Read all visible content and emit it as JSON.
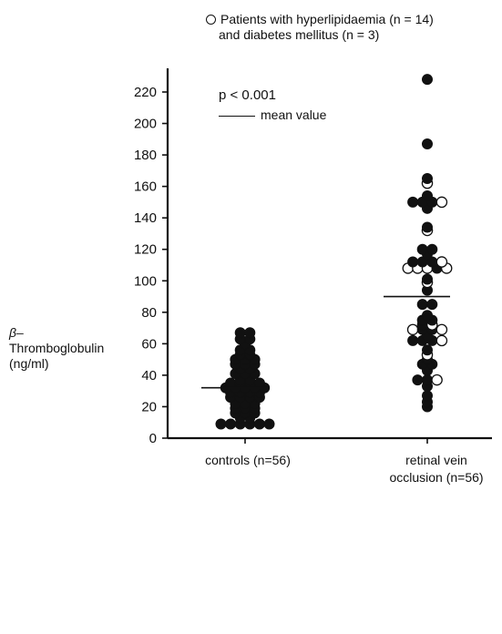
{
  "chart_data": {
    "type": "scatter",
    "legend": {
      "open_marker_line1": "Patients with hyperlipidaemia (n = 14)",
      "open_marker_line2": "and diabetes mellitus (n = 3)"
    },
    "annotation": {
      "p_value": "p < 0.001",
      "mean_label": "mean value"
    },
    "ylabel_lines": [
      "β–",
      "Thromboglobulin",
      "(ng/ml)"
    ],
    "ylim": [
      0,
      228
    ],
    "yticks": [
      0,
      20,
      40,
      60,
      80,
      100,
      120,
      140,
      160,
      180,
      200,
      220
    ],
    "categories": [
      "controls (n=56)",
      "retinal vein occlusion (n=56)"
    ],
    "category_label_lines": [
      [
        "controls (n=56)"
      ],
      [
        "retinal vein",
        "occlusion (n=56)"
      ]
    ],
    "series": [
      {
        "category": "controls (n=56)",
        "mean": 32,
        "points": [
          {
            "y": 67,
            "open": false
          },
          {
            "y": 67,
            "open": false
          },
          {
            "y": 63,
            "open": false
          },
          {
            "y": 63,
            "open": false
          },
          {
            "y": 60,
            "open": false
          },
          {
            "y": 56,
            "open": false
          },
          {
            "y": 56,
            "open": false
          },
          {
            "y": 53,
            "open": false
          },
          {
            "y": 53,
            "open": false
          },
          {
            "y": 50,
            "open": false
          },
          {
            "y": 50,
            "open": false
          },
          {
            "y": 50,
            "open": false
          },
          {
            "y": 47,
            "open": false
          },
          {
            "y": 47,
            "open": false
          },
          {
            "y": 47,
            "open": false
          },
          {
            "y": 44,
            "open": false
          },
          {
            "y": 44,
            "open": false
          },
          {
            "y": 41,
            "open": false
          },
          {
            "y": 41,
            "open": false
          },
          {
            "y": 41,
            "open": false
          },
          {
            "y": 37,
            "open": false
          },
          {
            "y": 37,
            "open": false
          },
          {
            "y": 35,
            "open": false
          },
          {
            "y": 35,
            "open": false
          },
          {
            "y": 35,
            "open": false
          },
          {
            "y": 35,
            "open": false
          },
          {
            "y": 32,
            "open": false
          },
          {
            "y": 32,
            "open": false
          },
          {
            "y": 32,
            "open": false
          },
          {
            "y": 32,
            "open": false
          },
          {
            "y": 32,
            "open": false
          },
          {
            "y": 29,
            "open": false
          },
          {
            "y": 29,
            "open": false
          },
          {
            "y": 29,
            "open": false
          },
          {
            "y": 29,
            "open": false
          },
          {
            "y": 26,
            "open": false
          },
          {
            "y": 26,
            "open": false
          },
          {
            "y": 26,
            "open": false
          },
          {
            "y": 26,
            "open": false
          },
          {
            "y": 22,
            "open": false
          },
          {
            "y": 22,
            "open": false
          },
          {
            "y": 22,
            "open": false
          },
          {
            "y": 19,
            "open": false
          },
          {
            "y": 19,
            "open": false
          },
          {
            "y": 19,
            "open": false
          },
          {
            "y": 16,
            "open": false
          },
          {
            "y": 16,
            "open": false
          },
          {
            "y": 16,
            "open": false
          },
          {
            "y": 13,
            "open": false
          },
          {
            "y": 13,
            "open": false
          },
          {
            "y": 9,
            "open": false
          },
          {
            "y": 9,
            "open": false
          },
          {
            "y": 9,
            "open": false
          },
          {
            "y": 9,
            "open": false
          },
          {
            "y": 9,
            "open": false
          },
          {
            "y": 9,
            "open": false
          }
        ]
      },
      {
        "category": "retinal vein occlusion (n=56)",
        "mean": 90,
        "points": [
          {
            "y": 228,
            "open": false
          },
          {
            "y": 187,
            "open": false
          },
          {
            "y": 165,
            "open": false
          },
          {
            "y": 162,
            "open": true
          },
          {
            "y": 154,
            "open": false
          },
          {
            "y": 150,
            "open": false
          },
          {
            "y": 150,
            "open": false
          },
          {
            "y": 150,
            "open": false
          },
          {
            "y": 150,
            "open": true
          },
          {
            "y": 146,
            "open": false
          },
          {
            "y": 134,
            "open": false
          },
          {
            "y": 132,
            "open": true
          },
          {
            "y": 120,
            "open": false
          },
          {
            "y": 120,
            "open": false
          },
          {
            "y": 117,
            "open": false
          },
          {
            "y": 112,
            "open": false
          },
          {
            "y": 112,
            "open": false
          },
          {
            "y": 112,
            "open": false
          },
          {
            "y": 112,
            "open": true
          },
          {
            "y": 108,
            "open": true
          },
          {
            "y": 108,
            "open": true
          },
          {
            "y": 108,
            "open": true
          },
          {
            "y": 108,
            "open": false
          },
          {
            "y": 108,
            "open": true
          },
          {
            "y": 101,
            "open": false
          },
          {
            "y": 99,
            "open": true
          },
          {
            "y": 94,
            "open": false
          },
          {
            "y": 85,
            "open": false
          },
          {
            "y": 85,
            "open": false
          },
          {
            "y": 78,
            "open": false
          },
          {
            "y": 75,
            "open": false
          },
          {
            "y": 75,
            "open": false
          },
          {
            "y": 72,
            "open": false
          },
          {
            "y": 72,
            "open": true
          },
          {
            "y": 69,
            "open": true
          },
          {
            "y": 69,
            "open": false
          },
          {
            "y": 69,
            "open": false
          },
          {
            "y": 69,
            "open": true
          },
          {
            "y": 65,
            "open": false
          },
          {
            "y": 62,
            "open": false
          },
          {
            "y": 62,
            "open": false
          },
          {
            "y": 62,
            "open": false
          },
          {
            "y": 62,
            "open": true
          },
          {
            "y": 56,
            "open": false
          },
          {
            "y": 53,
            "open": true
          },
          {
            "y": 50,
            "open": false
          },
          {
            "y": 47,
            "open": false
          },
          {
            "y": 47,
            "open": false
          },
          {
            "y": 43,
            "open": false
          },
          {
            "y": 37,
            "open": false
          },
          {
            "y": 37,
            "open": false
          },
          {
            "y": 37,
            "open": true
          },
          {
            "y": 33,
            "open": false
          },
          {
            "y": 27,
            "open": false
          },
          {
            "y": 23,
            "open": false
          },
          {
            "y": 20,
            "open": false
          }
        ]
      }
    ]
  }
}
